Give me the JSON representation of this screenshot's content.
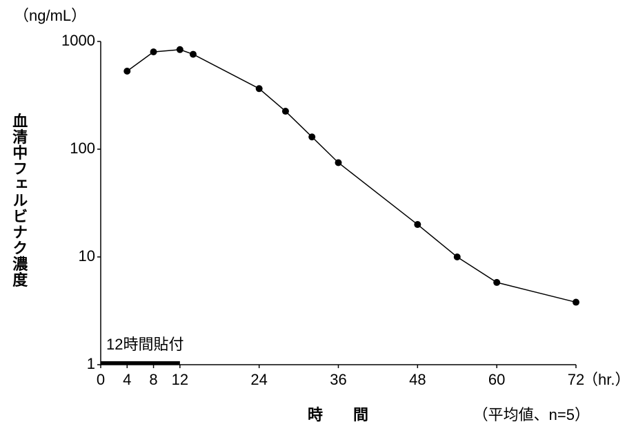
{
  "chart_data": {
    "type": "line",
    "y_unit": "（ng/mL）",
    "y_label": "血清中フェルビナク濃度",
    "x_label": "時　　間",
    "x_unit": "（hr.）",
    "note": "（平均値、n=5）",
    "patch": {
      "label": "12時間貼付",
      "span": [
        0,
        12
      ]
    },
    "x": [
      4,
      8,
      12,
      14,
      24,
      28,
      32,
      36,
      48,
      54,
      60,
      72
    ],
    "values": [
      530,
      800,
      840,
      760,
      365,
      225,
      130,
      75,
      20,
      10,
      5.8,
      3.8
    ],
    "color": "#000000",
    "log_y": true,
    "grid": false,
    "xlim": [
      0,
      72
    ],
    "xticks": [
      0,
      4,
      8,
      12,
      24,
      36,
      48,
      60,
      72
    ],
    "ylim": [
      1,
      1000
    ],
    "yticks": [
      1,
      10,
      100,
      1000
    ]
  }
}
